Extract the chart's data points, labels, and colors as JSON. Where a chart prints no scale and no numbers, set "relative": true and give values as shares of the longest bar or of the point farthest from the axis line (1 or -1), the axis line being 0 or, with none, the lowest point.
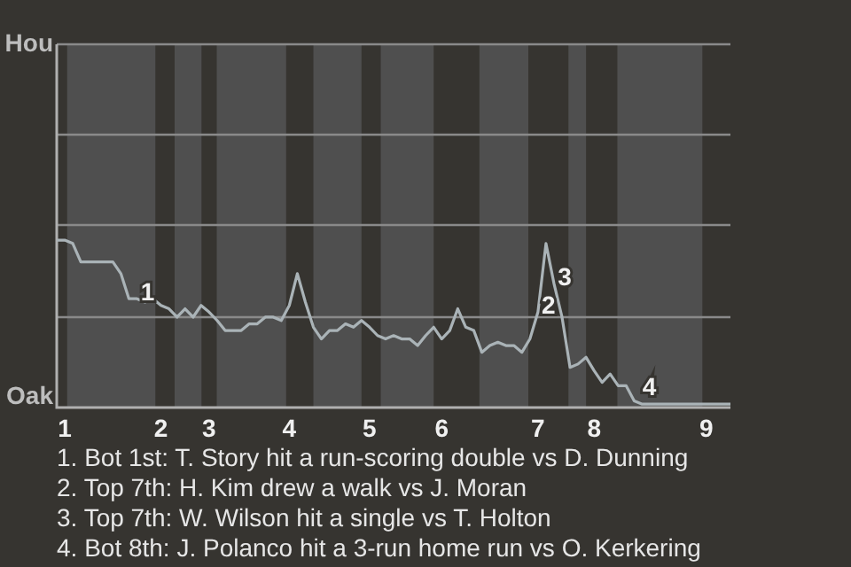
{
  "chart_data": {
    "type": "line",
    "relative": true,
    "categories": [
      null,
      "1",
      null,
      null,
      null,
      null,
      null,
      null,
      null,
      null,
      null,
      null,
      null,
      "2",
      null,
      null,
      null,
      null,
      null,
      "3",
      null,
      null,
      null,
      null,
      null,
      null,
      null,
      null,
      null,
      "4",
      null,
      null,
      null,
      null,
      null,
      null,
      null,
      null,
      null,
      "5",
      null,
      null,
      null,
      null,
      null,
      null,
      null,
      null,
      "6",
      null,
      null,
      null,
      null,
      null,
      null,
      null,
      null,
      null,
      null,
      null,
      "7",
      null,
      null,
      null,
      null,
      null,
      null,
      "8",
      null,
      null,
      null,
      null,
      null,
      null,
      null,
      null,
      null,
      null,
      null,
      null,
      null,
      "9",
      null,
      null,
      null
    ],
    "series": [
      {
        "color": "#aab3b7",
        "values": [
          1,
          1,
          0.98,
          0.87,
          0.87,
          0.87,
          0.87,
          0.87,
          0.8,
          0.65,
          0.65,
          0.63,
          0.65,
          0.61,
          0.59,
          0.54,
          0.59,
          0.54,
          0.61,
          0.57,
          0.52,
          0.46,
          0.46,
          0.46,
          0.5,
          0.5,
          0.54,
          0.54,
          0.52,
          0.61,
          0.8,
          0.63,
          0.48,
          0.41,
          0.46,
          0.46,
          0.5,
          0.48,
          0.52,
          0.48,
          0.43,
          0.41,
          0.43,
          0.41,
          0.41,
          0.37,
          0.43,
          0.48,
          0.41,
          0.46,
          0.59,
          0.48,
          0.46,
          0.33,
          0.37,
          0.39,
          0.37,
          0.37,
          0.33,
          0.41,
          0.57,
          0.98,
          0.74,
          0.54,
          0.24,
          0.26,
          0.3,
          0.22,
          0.15,
          0.2,
          0.13,
          0.13,
          0.04,
          0.02,
          0.02,
          0.02,
          0.02,
          0.02,
          0.02,
          0.02,
          0.02,
          0.02,
          0.02,
          0.02,
          0.02
        ]
      }
    ],
    "ref_lines": [
      {
        "axis": "y",
        "value": 0.54,
        "label": null,
        "color": "#8a8a8a"
      },
      {
        "axis": "y",
        "value": 1.09,
        "label": null,
        "color": "#8a8a8a"
      },
      {
        "axis": "y",
        "value": 1.63,
        "label": null,
        "color": "#8a8a8a"
      },
      {
        "axis": "y",
        "value": 2.17,
        "label": "Hou",
        "color": "#8a8a8a"
      }
    ],
    "annotations": [
      "1",
      "2",
      "3",
      "4",
      "Oak",
      "1. Bot 1st: T. Story hit a run-scoring double vs D. Dunning",
      "2. Top 7th: H. Kim drew a walk vs J. Moran",
      "3. Top 7th: W. Wilson hit a single vs T. Holton",
      "4. Bot 8th: J. Polanco hit a 3-run home run vs O. Kerkering"
    ],
    "legend": false,
    "marker": "none",
    "line_style": "solid"
  }
}
